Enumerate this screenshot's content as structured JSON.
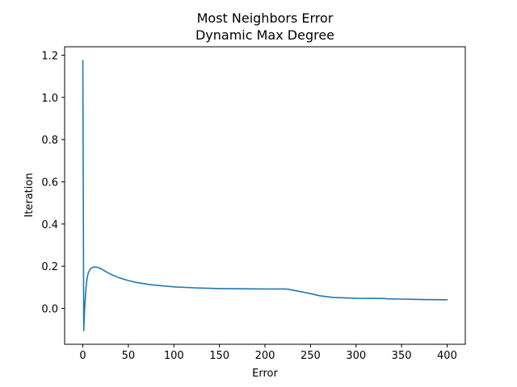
{
  "chart_data": {
    "type": "line",
    "title": "Most Neighbors Error\nDynamic Max Degree",
    "title_lines": [
      "Most Neighbors Error",
      "Dynamic Max Degree"
    ],
    "xlabel": "Error",
    "ylabel": "Iteration",
    "xlim": [
      -20,
      420
    ],
    "ylim": [
      -0.17,
      1.24
    ],
    "xticks": [
      0,
      50,
      100,
      150,
      200,
      250,
      300,
      350,
      400
    ],
    "xtick_labels": [
      "0",
      "50",
      "100",
      "150",
      "200",
      "250",
      "300",
      "350",
      "400"
    ],
    "yticks": [
      0.0,
      0.2,
      0.4,
      0.6,
      0.8,
      1.0,
      1.2
    ],
    "ytick_labels": [
      "0.0",
      "0.2",
      "0.4",
      "0.6",
      "0.8",
      "1.0",
      "1.2"
    ],
    "grid": false,
    "series": [
      {
        "color": "#1f77b4",
        "x": [
          0,
          1,
          2,
          3,
          4,
          5,
          6,
          8,
          10,
          12,
          15,
          20,
          25,
          30,
          40,
          50,
          60,
          75,
          100,
          125,
          150,
          175,
          200,
          223,
          225,
          235,
          250,
          260,
          275,
          300,
          330,
          335,
          350,
          375,
          400
        ],
        "y": [
          1.175,
          -0.105,
          0.0,
          0.07,
          0.12,
          0.15,
          0.168,
          0.185,
          0.193,
          0.196,
          0.196,
          0.188,
          0.175,
          0.163,
          0.145,
          0.132,
          0.122,
          0.112,
          0.102,
          0.097,
          0.094,
          0.093,
          0.092,
          0.092,
          0.091,
          0.083,
          0.07,
          0.06,
          0.052,
          0.048,
          0.047,
          0.045,
          0.044,
          0.042,
          0.041
        ]
      }
    ]
  }
}
